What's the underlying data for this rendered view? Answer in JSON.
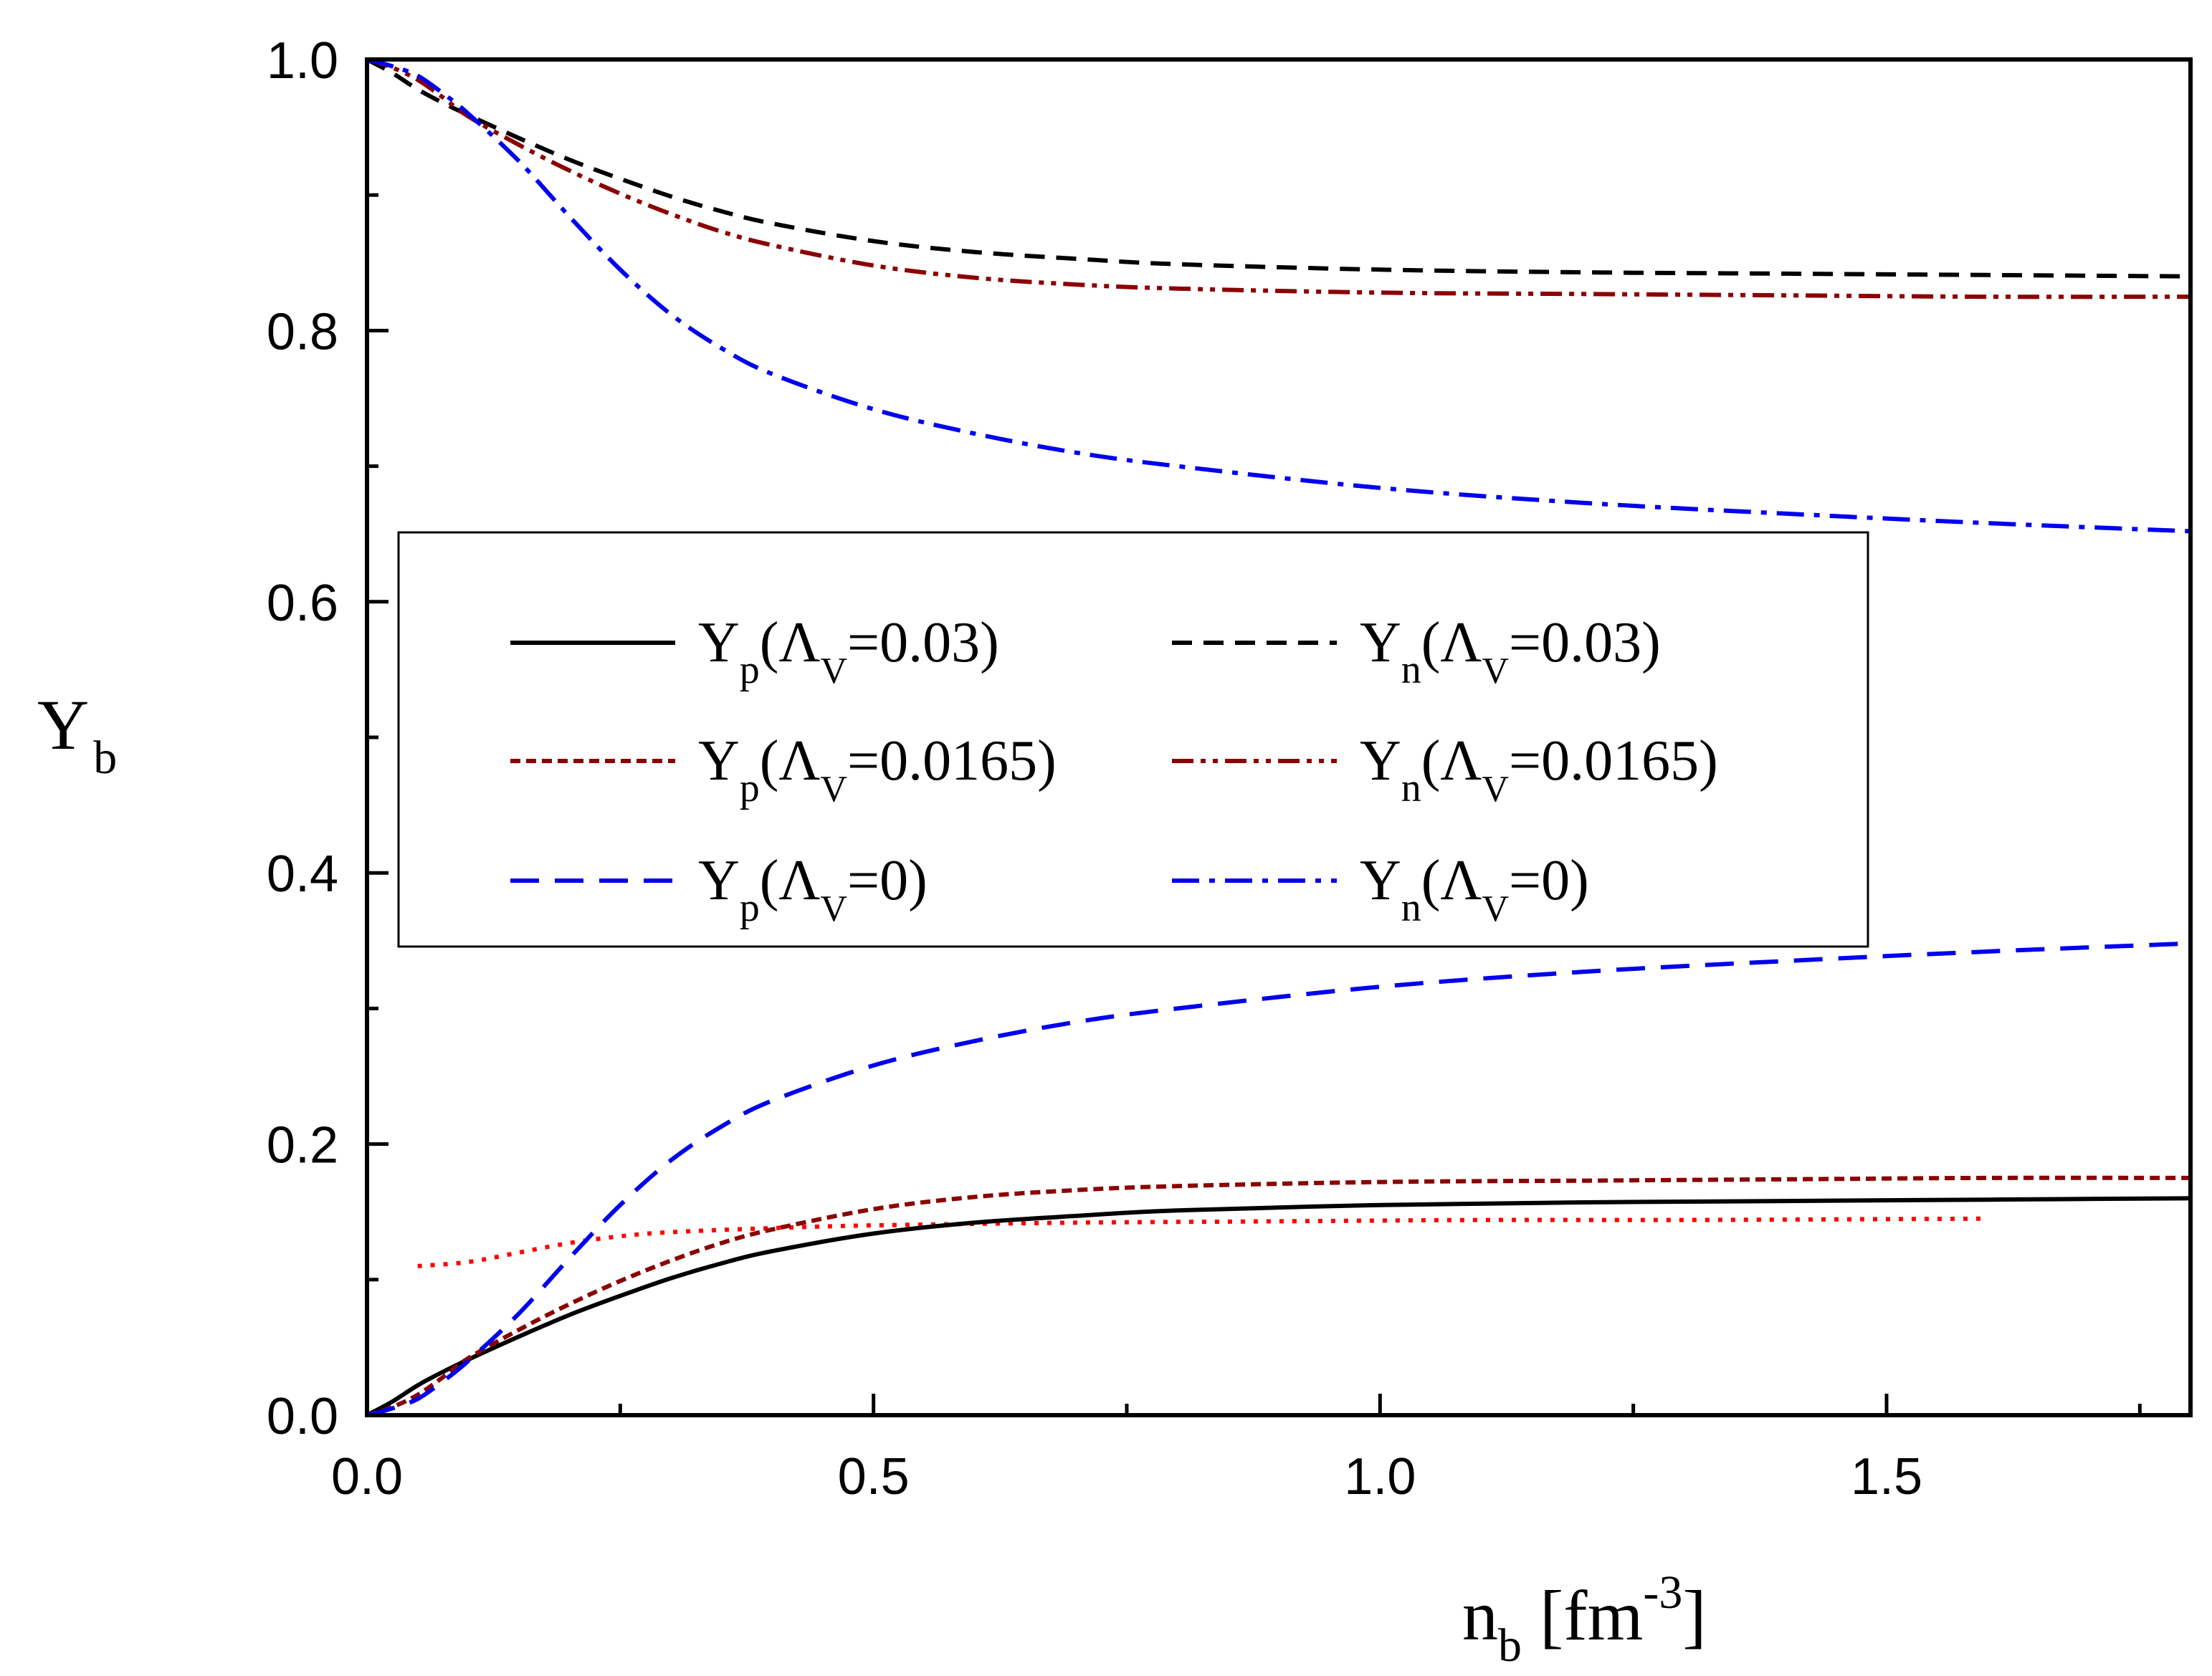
{
  "chart_data": {
    "type": "line",
    "xlabel": {
      "main": "n",
      "sub": "b",
      "unit_open": " [fm",
      "sup": "-3",
      "unit_close": "]"
    },
    "ylabel": {
      "main": "Y",
      "sub": "b"
    },
    "xlim": [
      0,
      1.8
    ],
    "ylim": [
      0,
      1.0
    ],
    "x_ticks": [
      "0.0",
      "0.5",
      "1.0",
      "1.5"
    ],
    "x_tick_values": [
      0,
      0.5,
      1.0,
      1.5
    ],
    "y_ticks": [
      "0.0",
      "0.2",
      "0.4",
      "0.6",
      "0.8",
      "1.0"
    ],
    "y_tick_values": [
      0,
      0.2,
      0.4,
      0.6,
      0.8,
      1.0
    ],
    "x_minor_step": 0.25,
    "y_minor_step": 0.1,
    "legend_position": "center",
    "series": [
      {
        "id": "yp_003",
        "prefix": "Y",
        "sub": "p",
        "paren": "(Λ",
        "psub": "V",
        "value": "=0.03)",
        "color": "#000000",
        "dash": "solid",
        "x": [
          0,
          0.025,
          0.05,
          0.075,
          0.1,
          0.15,
          0.2,
          0.25,
          0.3,
          0.35,
          0.4,
          0.5,
          0.6,
          0.7,
          0.8,
          1.0,
          1.2,
          1.4,
          1.6,
          1.8
        ],
        "y": [
          0,
          0.01,
          0.022,
          0.032,
          0.041,
          0.058,
          0.074,
          0.088,
          0.101,
          0.112,
          0.121,
          0.134,
          0.142,
          0.147,
          0.151,
          0.155,
          0.157,
          0.158,
          0.159,
          0.16
        ]
      },
      {
        "id": "yn_003",
        "prefix": "Y",
        "sub": "n",
        "paren": "(Λ",
        "psub": "V",
        "value": "=0.03)",
        "color": "#000000",
        "dash": "dash",
        "x": [
          0,
          0.025,
          0.05,
          0.075,
          0.1,
          0.15,
          0.2,
          0.25,
          0.3,
          0.35,
          0.4,
          0.5,
          0.6,
          0.7,
          0.8,
          1.0,
          1.2,
          1.4,
          1.6,
          1.8
        ],
        "y": [
          1.0,
          0.99,
          0.978,
          0.968,
          0.959,
          0.942,
          0.926,
          0.912,
          0.899,
          0.888,
          0.879,
          0.866,
          0.858,
          0.853,
          0.849,
          0.845,
          0.843,
          0.842,
          0.841,
          0.84
        ]
      },
      {
        "id": "yp_00165",
        "prefix": "Y",
        "sub": "p",
        "paren": "(Λ",
        "psub": "V",
        "value": "=0.0165)",
        "color": "#8b0000",
        "dash": "short-dash",
        "x": [
          0,
          0.025,
          0.05,
          0.075,
          0.1,
          0.15,
          0.2,
          0.25,
          0.3,
          0.35,
          0.4,
          0.5,
          0.6,
          0.7,
          0.8,
          1.0,
          1.2,
          1.4,
          1.6,
          1.8
        ],
        "y": [
          0,
          0.006,
          0.015,
          0.028,
          0.042,
          0.063,
          0.082,
          0.099,
          0.114,
          0.127,
          0.137,
          0.152,
          0.161,
          0.166,
          0.169,
          0.172,
          0.173,
          0.174,
          0.175,
          0.175
        ]
      },
      {
        "id": "yn_00165",
        "prefix": "Y",
        "sub": "n",
        "paren": "(Λ",
        "psub": "V",
        "value": "=0.0165)",
        "color": "#8b0000",
        "dash": "dash-dot-dot",
        "x": [
          0,
          0.025,
          0.05,
          0.075,
          0.1,
          0.15,
          0.2,
          0.25,
          0.3,
          0.35,
          0.4,
          0.5,
          0.6,
          0.7,
          0.8,
          1.0,
          1.2,
          1.4,
          1.6,
          1.8
        ],
        "y": [
          1.0,
          0.994,
          0.985,
          0.972,
          0.958,
          0.937,
          0.918,
          0.901,
          0.886,
          0.873,
          0.863,
          0.848,
          0.839,
          0.834,
          0.831,
          0.828,
          0.827,
          0.826,
          0.825,
          0.825
        ]
      },
      {
        "id": "yp_0",
        "prefix": "Y",
        "sub": "p",
        "paren": "(Λ",
        "psub": "V",
        "value": "=0)",
        "color": "#0000ee",
        "dash": "long-dash",
        "x": [
          0,
          0.025,
          0.05,
          0.075,
          0.1,
          0.15,
          0.2,
          0.25,
          0.3,
          0.35,
          0.4,
          0.5,
          0.6,
          0.7,
          0.8,
          1.0,
          1.2,
          1.4,
          1.6,
          1.8
        ],
        "y": [
          0,
          0.005,
          0.012,
          0.025,
          0.04,
          0.075,
          0.116,
          0.155,
          0.188,
          0.213,
          0.232,
          0.258,
          0.276,
          0.29,
          0.3,
          0.316,
          0.327,
          0.335,
          0.342,
          0.348
        ]
      },
      {
        "id": "yn_0",
        "prefix": "Y",
        "sub": "n",
        "paren": "(Λ",
        "psub": "V",
        "value": "=0)",
        "color": "#0000ee",
        "dash": "dash-dot",
        "x": [
          0,
          0.025,
          0.05,
          0.075,
          0.1,
          0.15,
          0.2,
          0.25,
          0.3,
          0.35,
          0.4,
          0.5,
          0.6,
          0.7,
          0.8,
          1.0,
          1.2,
          1.4,
          1.6,
          1.8
        ],
        "y": [
          1.0,
          0.995,
          0.988,
          0.975,
          0.96,
          0.925,
          0.884,
          0.845,
          0.812,
          0.787,
          0.768,
          0.742,
          0.724,
          0.71,
          0.7,
          0.684,
          0.673,
          0.665,
          0.658,
          0.652
        ]
      }
    ],
    "extra_series": [
      {
        "id": "red_dotted",
        "color": "#ff0000",
        "dash": "dot",
        "x": [
          0.05,
          0.1,
          0.15,
          0.2,
          0.25,
          0.3,
          0.4,
          0.5,
          0.7,
          0.9,
          1.1,
          1.3,
          1.6
        ],
        "y": [
          0.11,
          0.113,
          0.12,
          0.127,
          0.132,
          0.135,
          0.138,
          0.14,
          0.142,
          0.143,
          0.144,
          0.144,
          0.145
        ]
      }
    ]
  }
}
